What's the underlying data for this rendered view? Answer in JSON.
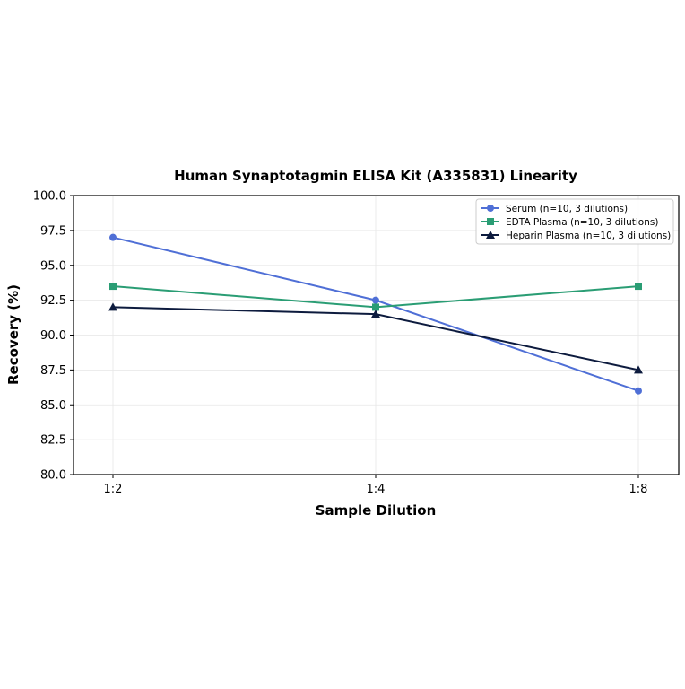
{
  "chart_data": {
    "type": "line",
    "title": "Human Synaptotagmin ELISA Kit (A335831) Linearity",
    "xlabel": "Sample Dilution",
    "ylabel": "Recovery (%)",
    "categories": [
      "1:2",
      "1:4",
      "1:8"
    ],
    "ylim": [
      80.0,
      100.0
    ],
    "yticks": [
      "80.0",
      "82.5",
      "85.0",
      "87.5",
      "90.0",
      "92.5",
      "95.0",
      "97.5",
      "100.0"
    ],
    "grid": true,
    "legend_position": "top-right",
    "series": [
      {
        "name": "Serum (n=10, 3 dilutions)",
        "values": [
          97.0,
          92.5,
          86.0
        ],
        "color": "#4f6fd6",
        "marker": "circle"
      },
      {
        "name": "EDTA Plasma (n=10, 3 dilutions)",
        "values": [
          93.5,
          92.0,
          93.5
        ],
        "color": "#2a9d74",
        "marker": "square"
      },
      {
        "name": "Heparin Plasma (n=10, 3 dilutions)",
        "values": [
          92.0,
          91.5,
          87.5
        ],
        "color": "#0d1b3e",
        "marker": "triangle"
      }
    ]
  }
}
